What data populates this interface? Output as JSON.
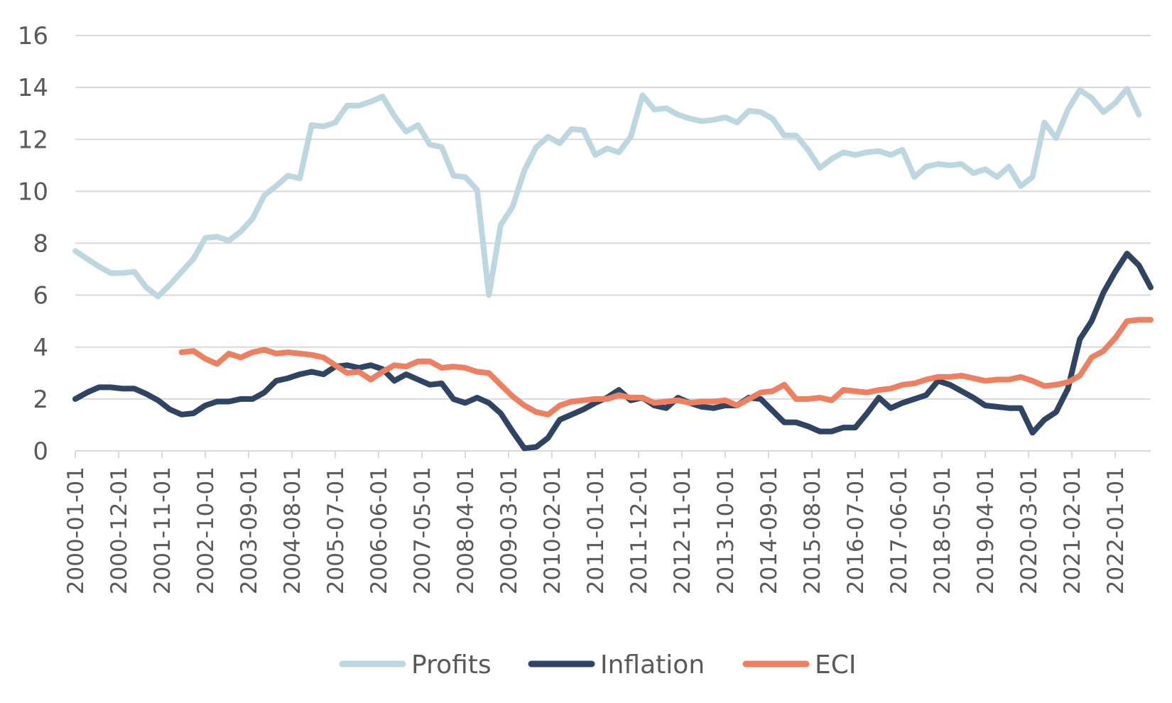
{
  "chart_data": {
    "type": "line",
    "title": "",
    "xlabel": "",
    "ylabel": "",
    "ylim": [
      0,
      16
    ],
    "y_ticks": [
      0,
      2,
      4,
      6,
      8,
      10,
      12,
      14,
      16
    ],
    "grid": true,
    "legend_position": "bottom",
    "x": [
      "2000-01-01",
      "2000-04-01",
      "2000-07-01",
      "2000-10-01",
      "2001-01-01",
      "2001-04-01",
      "2001-07-01",
      "2001-10-01",
      "2002-01-01",
      "2002-04-01",
      "2002-07-01",
      "2002-10-01",
      "2003-01-01",
      "2003-04-01",
      "2003-07-01",
      "2003-10-01",
      "2004-01-01",
      "2004-04-01",
      "2004-07-01",
      "2004-10-01",
      "2005-01-01",
      "2005-04-01",
      "2005-07-01",
      "2005-10-01",
      "2006-01-01",
      "2006-04-01",
      "2006-07-01",
      "2006-10-01",
      "2007-01-01",
      "2007-04-01",
      "2007-07-01",
      "2007-10-01",
      "2008-01-01",
      "2008-04-01",
      "2008-07-01",
      "2008-10-01",
      "2009-01-01",
      "2009-04-01",
      "2009-07-01",
      "2009-10-01",
      "2010-01-01",
      "2010-04-01",
      "2010-07-01",
      "2010-10-01",
      "2011-01-01",
      "2011-04-01",
      "2011-07-01",
      "2011-10-01",
      "2012-01-01",
      "2012-04-01",
      "2012-07-01",
      "2012-10-01",
      "2013-01-01",
      "2013-04-01",
      "2013-07-01",
      "2013-10-01",
      "2014-01-01",
      "2014-04-01",
      "2014-07-01",
      "2014-10-01",
      "2015-01-01",
      "2015-04-01",
      "2015-07-01",
      "2015-10-01",
      "2016-01-01",
      "2016-04-01",
      "2016-07-01",
      "2016-10-01",
      "2017-01-01",
      "2017-04-01",
      "2017-07-01",
      "2017-10-01",
      "2018-01-01",
      "2018-04-01",
      "2018-07-01",
      "2018-10-01",
      "2019-01-01",
      "2019-04-01",
      "2019-07-01",
      "2019-10-01",
      "2020-01-01",
      "2020-04-01",
      "2020-07-01",
      "2020-10-01",
      "2021-01-01",
      "2021-04-01",
      "2021-07-01",
      "2021-10-01",
      "2022-01-01",
      "2022-04-01",
      "2022-07-01",
      "2022-10-01"
    ],
    "x_tick_labels": [
      "2000-01-01",
      "2000-12-01",
      "2001-11-01",
      "2002-10-01",
      "2003-09-01",
      "2004-08-01",
      "2005-07-01",
      "2006-06-01",
      "2007-05-01",
      "2008-04-01",
      "2009-03-01",
      "2010-02-01",
      "2011-01-01",
      "2011-12-01",
      "2012-11-01",
      "2013-10-01",
      "2014-09-01",
      "2015-08-01",
      "2016-07-01",
      "2017-06-01",
      "2018-05-01",
      "2019-04-01",
      "2020-03-01",
      "2021-02-01",
      "2022-01-01"
    ],
    "series": [
      {
        "name": "Profits",
        "color": "#bdd7e0",
        "values": [
          7.7,
          7.4,
          7.1,
          6.85,
          6.85,
          6.9,
          6.3,
          5.95,
          6.4,
          6.9,
          7.4,
          8.2,
          8.25,
          8.1,
          8.45,
          8.95,
          9.85,
          10.2,
          10.6,
          10.5,
          12.55,
          12.5,
          12.65,
          13.3,
          13.3,
          13.45,
          13.65,
          12.9,
          12.3,
          12.55,
          11.8,
          11.7,
          10.6,
          10.55,
          10.05,
          6.0,
          8.7,
          9.4,
          10.8,
          11.7,
          12.1,
          11.85,
          12.4,
          12.35,
          11.4,
          11.65,
          11.5,
          12.1,
          13.7,
          13.15,
          13.2,
          12.95,
          12.8,
          12.7,
          12.75,
          12.85,
          12.65,
          13.1,
          13.05,
          12.8,
          12.15,
          12.15,
          11.6,
          10.9,
          11.25,
          11.5,
          11.4,
          11.5,
          11.55,
          11.4,
          11.6,
          10.55,
          10.95,
          11.05,
          11.0,
          11.05,
          10.7,
          10.85,
          10.55,
          10.95,
          10.2,
          10.55,
          12.65,
          12.05,
          13.15,
          13.9,
          13.6,
          13.05,
          13.4,
          13.95,
          12.95,
          null
        ]
      },
      {
        "name": "Inflation",
        "color": "#2e4462",
        "values": [
          2.0,
          2.25,
          2.45,
          2.45,
          2.4,
          2.4,
          2.2,
          1.95,
          1.6,
          1.4,
          1.45,
          1.75,
          1.9,
          1.9,
          2.0,
          2.0,
          2.25,
          2.7,
          2.8,
          2.95,
          3.05,
          2.95,
          3.25,
          3.3,
          3.2,
          3.3,
          3.15,
          2.7,
          2.95,
          2.75,
          2.55,
          2.6,
          2.0,
          1.85,
          2.05,
          1.85,
          1.45,
          0.75,
          0.1,
          0.15,
          0.5,
          1.2,
          1.4,
          1.6,
          1.85,
          2.05,
          2.35,
          1.95,
          2.05,
          1.75,
          1.65,
          2.05,
          1.85,
          1.7,
          1.65,
          1.75,
          1.75,
          2.05,
          2.0,
          1.55,
          1.1,
          1.1,
          0.95,
          0.75,
          0.75,
          0.9,
          0.9,
          1.45,
          2.05,
          1.65,
          1.85,
          2.0,
          2.15,
          2.7,
          2.55,
          2.3,
          2.05,
          1.75,
          1.7,
          1.65,
          1.65,
          0.7,
          1.2,
          1.5,
          2.4,
          4.3,
          5.0,
          6.1,
          6.9,
          7.6,
          7.15,
          6.3
        ]
      },
      {
        "name": "ECI",
        "color": "#ee8062",
        "values": [
          null,
          null,
          null,
          null,
          null,
          null,
          null,
          null,
          null,
          3.8,
          3.85,
          3.55,
          3.35,
          3.75,
          3.6,
          3.8,
          3.9,
          3.75,
          3.8,
          3.75,
          3.7,
          3.6,
          3.3,
          3.0,
          3.05,
          2.75,
          3.05,
          3.3,
          3.25,
          3.45,
          3.45,
          3.2,
          3.25,
          3.2,
          3.05,
          3.0,
          2.55,
          2.1,
          1.75,
          1.5,
          1.4,
          1.75,
          1.9,
          1.95,
          2.0,
          2.0,
          2.15,
          2.05,
          2.05,
          1.85,
          1.9,
          1.95,
          1.85,
          1.9,
          1.9,
          1.95,
          1.75,
          2.0,
          2.25,
          2.3,
          2.55,
          2.0,
          2.0,
          2.05,
          1.95,
          2.35,
          2.3,
          2.25,
          2.35,
          2.4,
          2.55,
          2.6,
          2.75,
          2.85,
          2.85,
          2.9,
          2.8,
          2.7,
          2.75,
          2.75,
          2.85,
          2.7,
          2.5,
          2.55,
          2.65,
          2.9,
          3.6,
          3.85,
          4.35,
          5.0,
          5.05,
          5.05
        ]
      }
    ]
  }
}
